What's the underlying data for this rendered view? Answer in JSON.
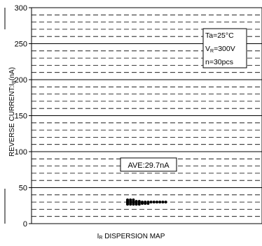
{
  "chart_data": {
    "type": "scatter",
    "title": "",
    "xlabel": "I_R DISPERSION MAP",
    "xlabel_main": "I",
    "xlabel_sub": "R",
    "xlabel_rest": " DISPERSION MAP",
    "ylabel": "REVERSE CURRENT:I_R(nA)",
    "ylabel_prefix": "REVERSE CURRENT:I",
    "ylabel_sub": "R",
    "ylabel_suffix": "(nA)",
    "ylim": [
      0,
      300
    ],
    "yticks": [
      "0",
      "50",
      "100",
      "150",
      "200",
      "250",
      "300"
    ],
    "minor_step": 10,
    "grid": true,
    "conditions": {
      "ta": "Ta=25°C",
      "vr_prefix": "V",
      "vr_sub": "R",
      "vr_suffix": "=300V",
      "n": "n=30pcs"
    },
    "average_label": "AVE:29.7nA",
    "series": [
      {
        "values": [
          {
            "x": 0,
            "y": 33
          },
          {
            "x": 0,
            "y": 31
          },
          {
            "x": 0,
            "y": 29
          },
          {
            "x": 0,
            "y": 27
          },
          {
            "x": 1,
            "y": 33
          },
          {
            "x": 1,
            "y": 31
          },
          {
            "x": 1,
            "y": 29
          },
          {
            "x": 1,
            "y": 27
          },
          {
            "x": 2,
            "y": 33
          },
          {
            "x": 2,
            "y": 31
          },
          {
            "x": 2,
            "y": 29
          },
          {
            "x": 2,
            "y": 27
          },
          {
            "x": 3,
            "y": 31
          },
          {
            "x": 3,
            "y": 29
          },
          {
            "x": 3,
            "y": 27
          },
          {
            "x": 4,
            "y": 31
          },
          {
            "x": 4,
            "y": 29
          },
          {
            "x": 4,
            "y": 27
          },
          {
            "x": 5,
            "y": 30
          },
          {
            "x": 5,
            "y": 28
          },
          {
            "x": 6,
            "y": 30
          },
          {
            "x": 6,
            "y": 28
          },
          {
            "x": 7,
            "y": 30
          },
          {
            "x": 7,
            "y": 28
          },
          {
            "x": 8,
            "y": 30
          },
          {
            "x": 9,
            "y": 30
          },
          {
            "x": 10,
            "y": 30
          },
          {
            "x": 11,
            "y": 30
          },
          {
            "x": 12,
            "y": 30
          },
          {
            "x": 13,
            "y": 30
          }
        ]
      }
    ]
  }
}
